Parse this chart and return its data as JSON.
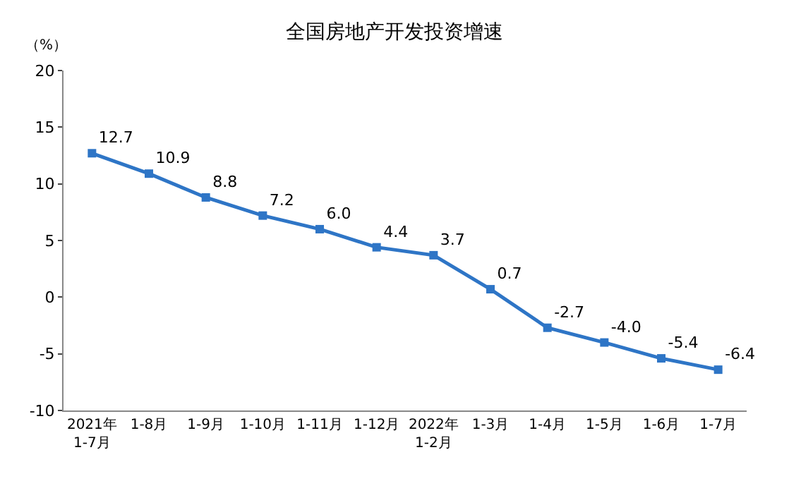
{
  "chart_data": {
    "type": "line",
    "title": "全国房地产开发投资增速",
    "ylabel": "（%）",
    "categories": [
      "2021年\n1-7月",
      "1-8月",
      "1-9月",
      "1-10月",
      "1-11月",
      "1-12月",
      "2022年\n1-2月",
      "1-3月",
      "1-4月",
      "1-5月",
      "1-6月",
      "1-7月"
    ],
    "series": [
      {
        "color": "#2e75c6",
        "values": [
          12.7,
          10.9,
          8.8,
          7.2,
          6.0,
          4.4,
          3.7,
          0.7,
          -2.7,
          -4.0,
          -5.4,
          -6.4
        ],
        "value_labels": [
          "12.7",
          "10.9",
          "8.8",
          "7.2",
          "6.0",
          "4.4",
          "3.7",
          "0.7",
          "-2.7",
          "-4.0",
          "-5.4",
          "-6.4"
        ]
      }
    ],
    "ylim": [
      -10,
      20
    ],
    "yticks": [
      -10,
      -5,
      0,
      5,
      10,
      15,
      20
    ],
    "legend": false,
    "marker": "square",
    "line_style": "solid"
  }
}
